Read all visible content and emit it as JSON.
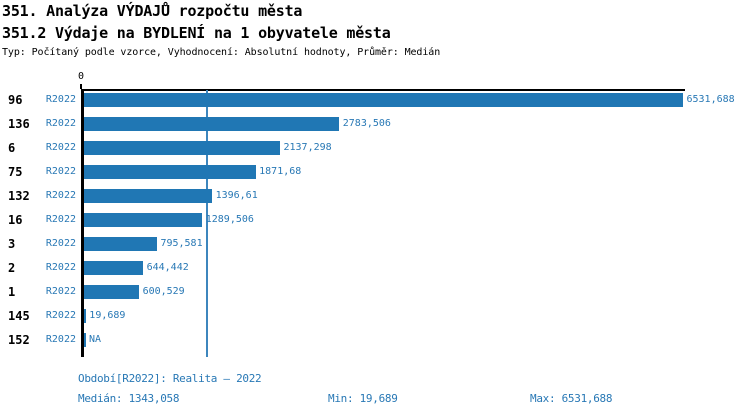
{
  "header": {
    "title_line1": "351. Analýza VÝDAJŮ rozpočtu města",
    "title_line2": "351.2 Výdaje na BYDLENÍ na 1 obyvatele města",
    "subtitle": "Typ: Počítaný podle vzorce, Vyhodnocení: Absolutní hodnoty, Průměr: Medián"
  },
  "chart_data": {
    "type": "bar",
    "orientation": "horizontal",
    "title": "351.2 Výdaje na BYDLENÍ na 1 obyvatele města",
    "categories": [
      "96",
      "136",
      "6",
      "75",
      "132",
      "16",
      "3",
      "2",
      "1",
      "145",
      "152"
    ],
    "series": [
      {
        "name": "R2022",
        "values": [
          6531.688,
          2783.506,
          2137.298,
          1871.68,
          1396.61,
          1289.506,
          795.581,
          644.442,
          600.529,
          19.689,
          null
        ]
      }
    ],
    "value_labels": [
      "6531,688",
      "2783,506",
      "2137,298",
      "1871,68",
      "1396,61",
      "1289,506",
      "795,581",
      "644,442",
      "600,529",
      "19,689",
      "NA"
    ],
    "x_axis": {
      "zero_label": "0",
      "min": 0
    },
    "median": 1343.058,
    "min": 19.689,
    "max": 6531.688,
    "grid": false,
    "legend": "none",
    "colors": {
      "bar": "#2077b4",
      "blue_text": "#2878b5",
      "median_line": "#3d86bd"
    }
  },
  "footer": {
    "period": "Období[R2022]: Realita – 2022",
    "median": "Medián: 1343,058",
    "min": "Min: 19,689",
    "max": "Max: 6531,688"
  }
}
